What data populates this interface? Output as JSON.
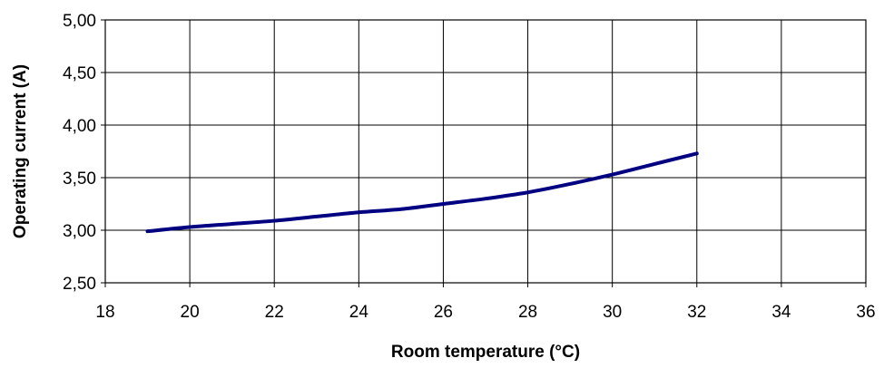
{
  "chart_data": {
    "type": "line",
    "title": "",
    "xlabel": "Room temperature (°C)",
    "ylabel": "Operating current (A)",
    "xlim": [
      18,
      36
    ],
    "ylim": [
      2.5,
      5.0
    ],
    "x_ticks": [
      18,
      20,
      22,
      24,
      26,
      28,
      30,
      32,
      34,
      36
    ],
    "x_tick_labels": [
      "18",
      "20",
      "22",
      "24",
      "26",
      "28",
      "30",
      "32",
      "34",
      "36"
    ],
    "y_ticks": [
      2.5,
      3.0,
      3.5,
      4.0,
      4.5,
      5.0
    ],
    "y_tick_labels": [
      "2,50",
      "3,00",
      "3,50",
      "4,00",
      "4,50",
      "5,00"
    ],
    "grid": true,
    "legend": "none",
    "series": [
      {
        "color": "#000080",
        "x": [
          19,
          20,
          21,
          22,
          23,
          24,
          25,
          26,
          27,
          28,
          29,
          30,
          31,
          32
        ],
        "y": [
          2.99,
          3.03,
          3.06,
          3.09,
          3.13,
          3.17,
          3.2,
          3.25,
          3.3,
          3.36,
          3.44,
          3.53,
          3.63,
          3.73
        ]
      }
    ]
  }
}
